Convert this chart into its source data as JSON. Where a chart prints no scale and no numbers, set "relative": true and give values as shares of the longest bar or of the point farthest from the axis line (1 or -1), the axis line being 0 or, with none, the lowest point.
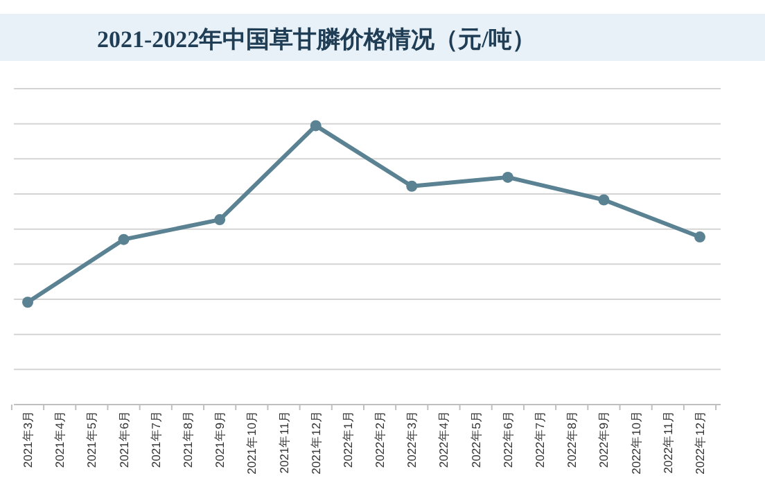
{
  "chart_data": {
    "type": "line",
    "title": "2021-2022年中国草甘膦价格情况（元/吨）",
    "relative": true,
    "grid": "y",
    "marker": "circle",
    "line_style": "solid",
    "categories": [
      "2021年3月",
      "2021年4月",
      "2021年5月",
      "2021年6月",
      "2021年7月",
      "2021年8月",
      "2021年9月",
      "2021年10月",
      "2021年11月",
      "2021年12月",
      "2022年1月",
      "2022年2月",
      "2022年3月",
      "2022年4月",
      "2022年5月",
      "2022年6月",
      "2022年7月",
      "2022年8月",
      "2022年9月",
      "2022年10月",
      "2022年11月",
      "2022年12月"
    ],
    "series": [
      {
        "color": "#5a8293",
        "values": [
          0.367,
          null,
          null,
          0.592,
          null,
          null,
          0.663,
          null,
          null,
          1,
          null,
          null,
          0.783,
          null,
          null,
          0.815,
          null,
          null,
          0.734,
          null,
          null,
          0.601
        ]
      }
    ]
  }
}
